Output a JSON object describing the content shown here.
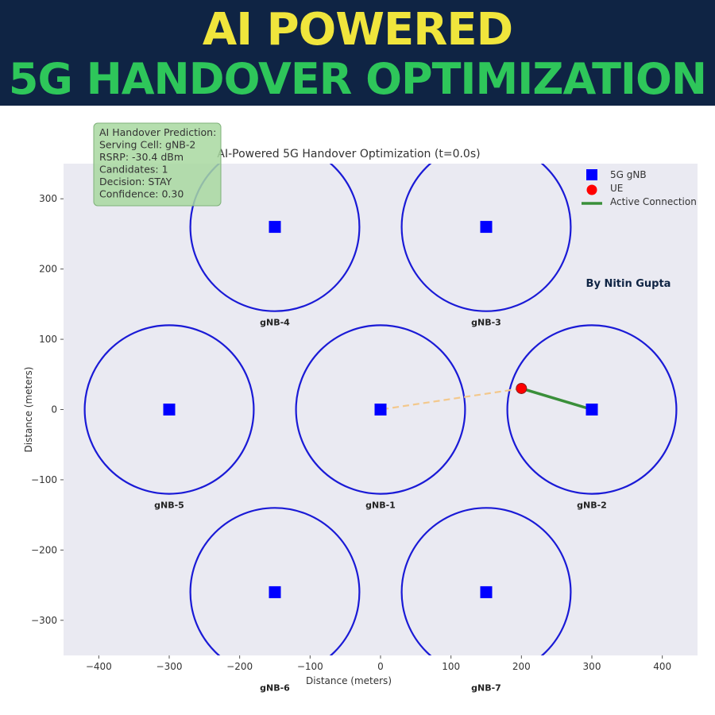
{
  "banner": {
    "line1": "AI POWERED",
    "line2": "5G HANDOVER OPTIMIZATION"
  },
  "author": "By Nitin Gupta",
  "info_box": {
    "lines": [
      "AI Handover Prediction:",
      "Serving Cell: gNB-2",
      "RSRP: -30.4 dBm",
      "Candidates: 1",
      "Decision: STAY",
      "Confidence: 0.30"
    ]
  },
  "chart_data": {
    "type": "scatter",
    "title": "AI-Powered 5G Handover Optimization (t=0.0s)",
    "xlabel": "Distance (meters)",
    "ylabel": "Distance (meters)",
    "xlim": [
      -450,
      450
    ],
    "ylim": [
      -350,
      350
    ],
    "xticks": [
      -400,
      -300,
      -200,
      -100,
      0,
      100,
      200,
      300,
      400
    ],
    "yticks": [
      -300,
      -200,
      -100,
      0,
      100,
      200,
      300
    ],
    "grid": false,
    "legend_position": "top-right",
    "legend": [
      "5G gNB",
      "UE",
      "Active Connection"
    ],
    "coverage_radius": 120,
    "gnbs": [
      {
        "name": "gNB-1",
        "x": 0,
        "y": 0
      },
      {
        "name": "gNB-2",
        "x": 300,
        "y": 0
      },
      {
        "name": "gNB-3",
        "x": 150,
        "y": 260
      },
      {
        "name": "gNB-4",
        "x": -150,
        "y": 260
      },
      {
        "name": "gNB-5",
        "x": -300,
        "y": 0
      },
      {
        "name": "gNB-6",
        "x": -150,
        "y": -260
      },
      {
        "name": "gNB-7",
        "x": 150,
        "y": -260
      }
    ],
    "ue": {
      "x": 200,
      "y": 30
    },
    "active_connection": {
      "from": "UE",
      "to": "gNB-2"
    },
    "candidate_connection": {
      "from": "UE",
      "to": "gNB-1"
    },
    "colors": {
      "gnb": "#0000ff",
      "coverage": "#1a1ad6",
      "ue": "#ff0000",
      "active": "#3a8f3a",
      "candidate": "#f3c88c",
      "plot_bg": "#eaeaf2",
      "info_bg": "#a8d8a0"
    }
  }
}
